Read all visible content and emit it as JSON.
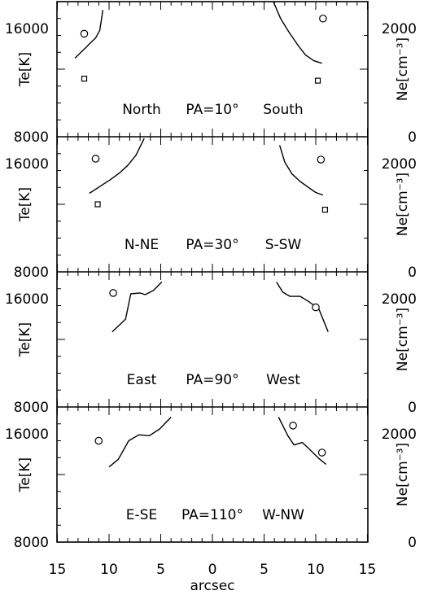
{
  "chart_data": {
    "type": "line",
    "layout": "4 vertically stacked panels sharing the x axis",
    "xlabel": "arcsec",
    "x_ticks": [
      "15",
      "10",
      "5",
      "0",
      "5",
      "10",
      "15"
    ],
    "xlim": [
      -15,
      15
    ],
    "left_axis": {
      "label": "Te[K]",
      "lim": [
        8000,
        16000
      ],
      "ticks": [
        "8000",
        "16000"
      ]
    },
    "right_axis": {
      "label": "Ne[cm⁻³]",
      "lim": [
        0,
        2000
      ],
      "ticks": [
        "0",
        "2000"
      ]
    },
    "markers": {
      "circle": "Te point",
      "square": "Ne point"
    },
    "panels": [
      {
        "caption": {
          "left": "North",
          "pa": "PA=10°",
          "right": "South"
        },
        "series": [
          {
            "side": "left",
            "axis": "te",
            "x": [
              -13.3,
              -12.8,
              -12.3,
              -11.8,
              -11.3,
              -10.9,
              -10.6
            ],
            "y": [
              12650,
              12950,
              13250,
              13550,
              13850,
              14300,
              15500
            ]
          },
          {
            "side": "right",
            "axis": "te",
            "x": [
              5.9,
              6.6,
              7.4,
              8.3,
              9.0,
              9.8,
              10.6
            ],
            "y": [
              16000,
              15000,
              14200,
              13400,
              12850,
              12500,
              12350
            ]
          }
        ],
        "circles": [
          {
            "x": -12.4,
            "y": 14100
          },
          {
            "x": 10.7,
            "y": 15000
          }
        ],
        "squares": [
          {
            "x": -12.4,
            "y": 860
          },
          {
            "x": 10.2,
            "y": 830
          }
        ]
      },
      {
        "caption": {
          "left": "N-NE",
          "pa": "PA=30°",
          "right": "S-SW"
        },
        "series": [
          {
            "side": "left",
            "axis": "te",
            "x": [
              -11.9,
              -10.9,
              -9.9,
              -9.0,
              -8.2,
              -7.4,
              -6.6
            ],
            "y": [
              12650,
              13050,
              13450,
              13850,
              14300,
              14900,
              15900
            ]
          },
          {
            "side": "right",
            "axis": "te",
            "x": [
              6.5,
              7.0,
              7.7,
              8.5,
              9.3,
              10.0,
              10.7
            ],
            "y": [
              15500,
              14500,
              13800,
              13350,
              13000,
              12700,
              12550
            ]
          }
        ],
        "circles": [
          {
            "x": -11.3,
            "y": 14700
          },
          {
            "x": 10.5,
            "y": 14650
          }
        ],
        "squares": [
          {
            "x": -11.1,
            "y": 1000
          },
          {
            "x": 10.9,
            "y": 920
          }
        ]
      },
      {
        "caption": {
          "left": "East",
          "pa": "PA=90°",
          "right": "West"
        },
        "series": [
          {
            "side": "left",
            "axis": "te",
            "x": [
              -9.7,
              -8.4,
              -7.9,
              -7.0,
              -6.5,
              -5.7,
              -4.9
            ],
            "y": [
              12450,
              13200,
              14700,
              14750,
              14650,
              14900,
              15400
            ]
          },
          {
            "side": "right",
            "axis": "te",
            "x": [
              6.2,
              6.8,
              7.5,
              8.5,
              9.3,
              10.3,
              11.2
            ],
            "y": [
              15400,
              14800,
              14550,
              14550,
              14250,
              13800,
              12450
            ]
          }
        ],
        "circles": [
          {
            "x": -9.6,
            "y": 14750
          },
          {
            "x": 10.0,
            "y": 13900
          }
        ],
        "squares": []
      },
      {
        "caption": {
          "left": "E-SE",
          "pa": "PA=110°",
          "right": "W-NW"
        },
        "series": [
          {
            "side": "left",
            "axis": "te",
            "x": [
              -10.0,
              -9.1,
              -8.1,
              -7.1,
              -6.1,
              -5.1,
              -4.0
            ],
            "y": [
              12450,
              12900,
              14000,
              14350,
              14300,
              14700,
              15400
            ]
          },
          {
            "side": "right",
            "axis": "te",
            "x": [
              6.4,
              7.3,
              7.9,
              8.7,
              9.3,
              10.3,
              11.0
            ],
            "y": [
              15400,
              14300,
              13750,
              13900,
              13550,
              12950,
              12600
            ]
          }
        ],
        "circles": [
          {
            "x": -11.0,
            "y": 14000
          },
          {
            "x": 7.8,
            "y": 14900
          },
          {
            "x": 10.6,
            "y": 13300
          }
        ],
        "squares": []
      }
    ]
  }
}
